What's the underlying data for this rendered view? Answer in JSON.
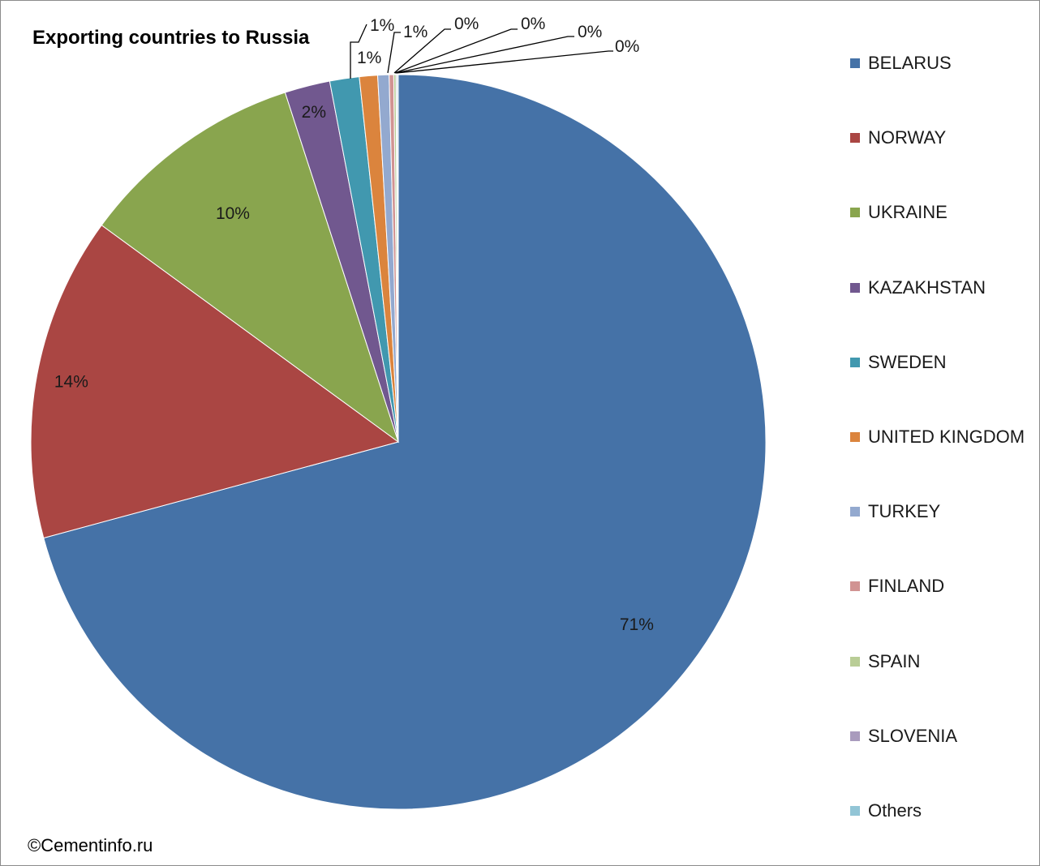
{
  "chart_data": {
    "type": "pie",
    "title": "Exporting countries to Russia",
    "categories": [
      "BELARUS",
      "NORWAY",
      "UKRAINE",
      "KAZAKHSTAN",
      "SWEDEN",
      "UNITED KINGDOM",
      "TURKEY",
      "FINLAND",
      "SPAIN",
      "SLOVENIA",
      "Others"
    ],
    "values": [
      71.0,
      14.3,
      10.0,
      2.0,
      1.3,
      0.8,
      0.5,
      0.2,
      0.1,
      0.05,
      0.05
    ],
    "data_labels": [
      "71%",
      "14%",
      "10%",
      "2%",
      "1%",
      "1%",
      "1%",
      "0%",
      "0%",
      "0%",
      "0%"
    ],
    "colors": [
      "#4572a7",
      "#aa4643",
      "#89a54e",
      "#71588f",
      "#4198af",
      "#db843d",
      "#93a9cf",
      "#d19392",
      "#b9cd96",
      "#a99bbd",
      "#92c5d6"
    ],
    "legend_position": "right"
  },
  "footer": {
    "copyright": "©Cementinfo.ru"
  }
}
